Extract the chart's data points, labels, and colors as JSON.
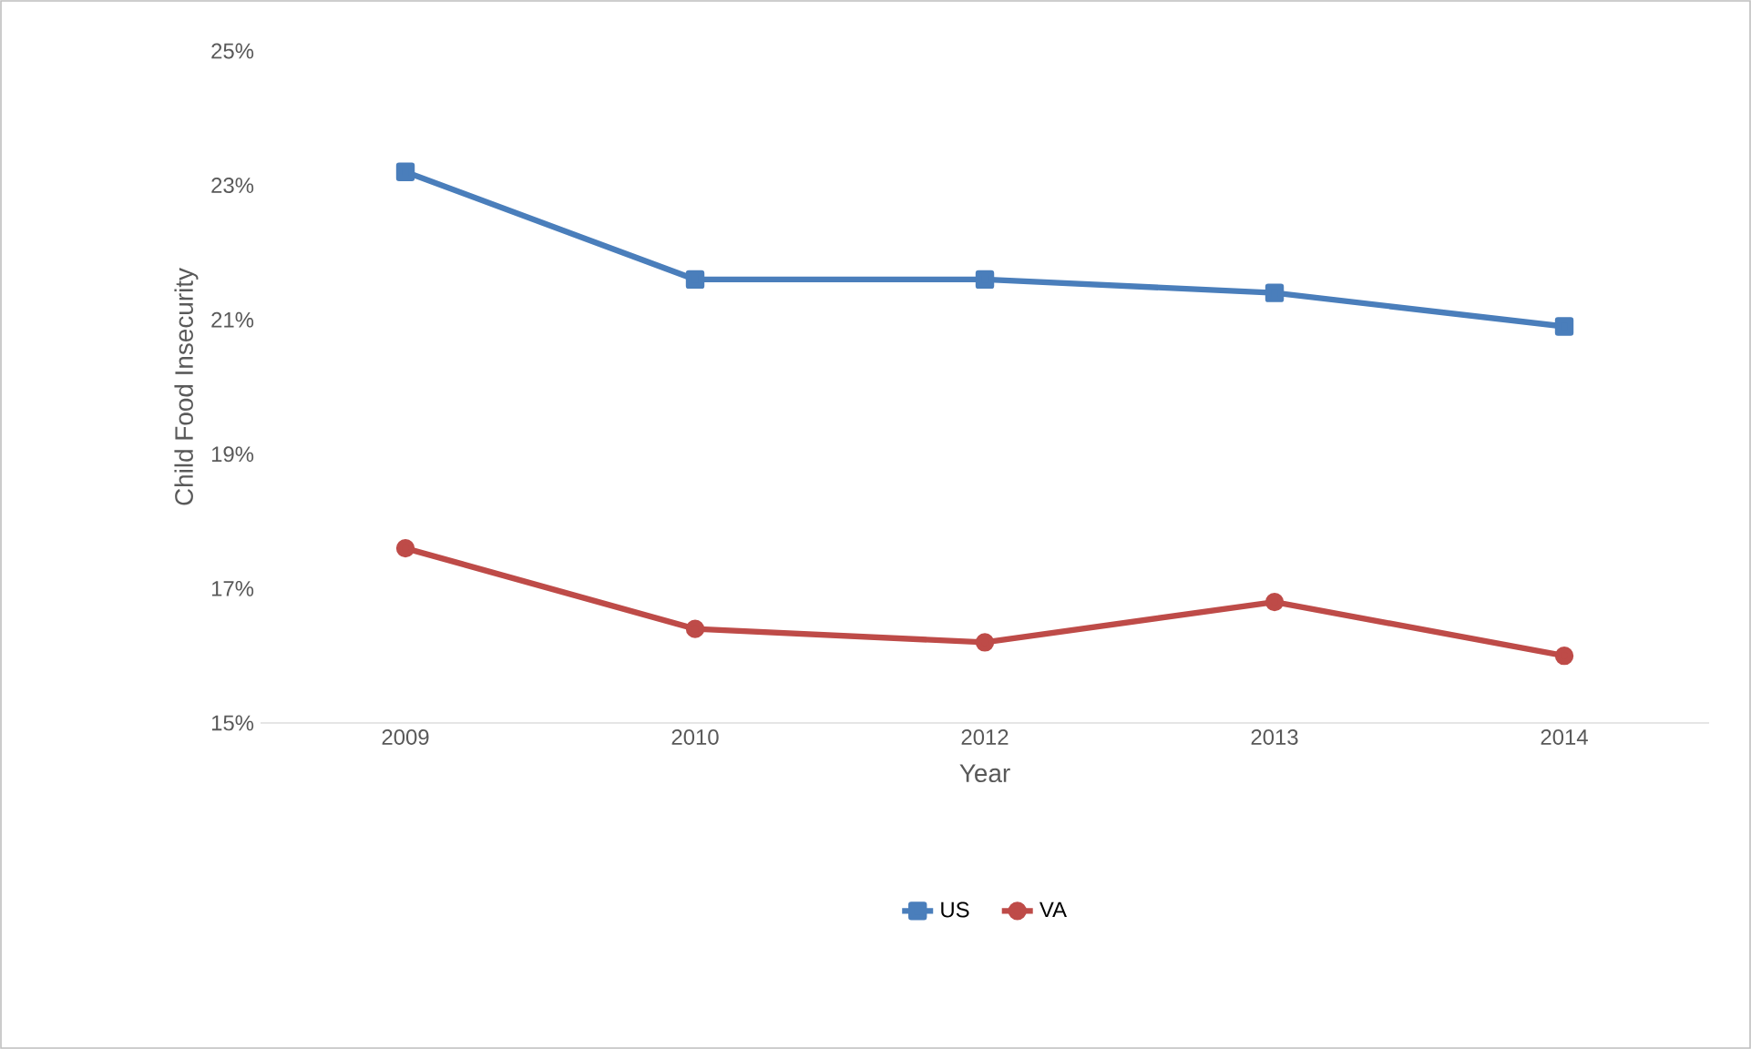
{
  "chart_data": {
    "type": "line",
    "xlabel": "Year",
    "ylabel": "Child Food Insecurity",
    "categories": [
      "2009",
      "2010",
      "2012",
      "2013",
      "2014"
    ],
    "series": [
      {
        "name": "US",
        "color": "#4a7ebb",
        "marker": "square",
        "values": [
          23.2,
          21.6,
          21.6,
          21.4,
          20.9
        ]
      },
      {
        "name": "VA",
        "color": "#be4b48",
        "marker": "circle",
        "values": [
          17.6,
          16.4,
          16.2,
          16.8,
          16.0
        ]
      }
    ],
    "ylim": [
      15,
      25
    ],
    "yticks": [
      {
        "value": 15,
        "label": "15%"
      },
      {
        "value": 17,
        "label": "17%"
      },
      {
        "value": 19,
        "label": "19%"
      },
      {
        "value": 21,
        "label": "21%"
      },
      {
        "value": 23,
        "label": "23%"
      },
      {
        "value": 25,
        "label": "25%"
      }
    ],
    "grid": false,
    "legend": "bottom"
  }
}
